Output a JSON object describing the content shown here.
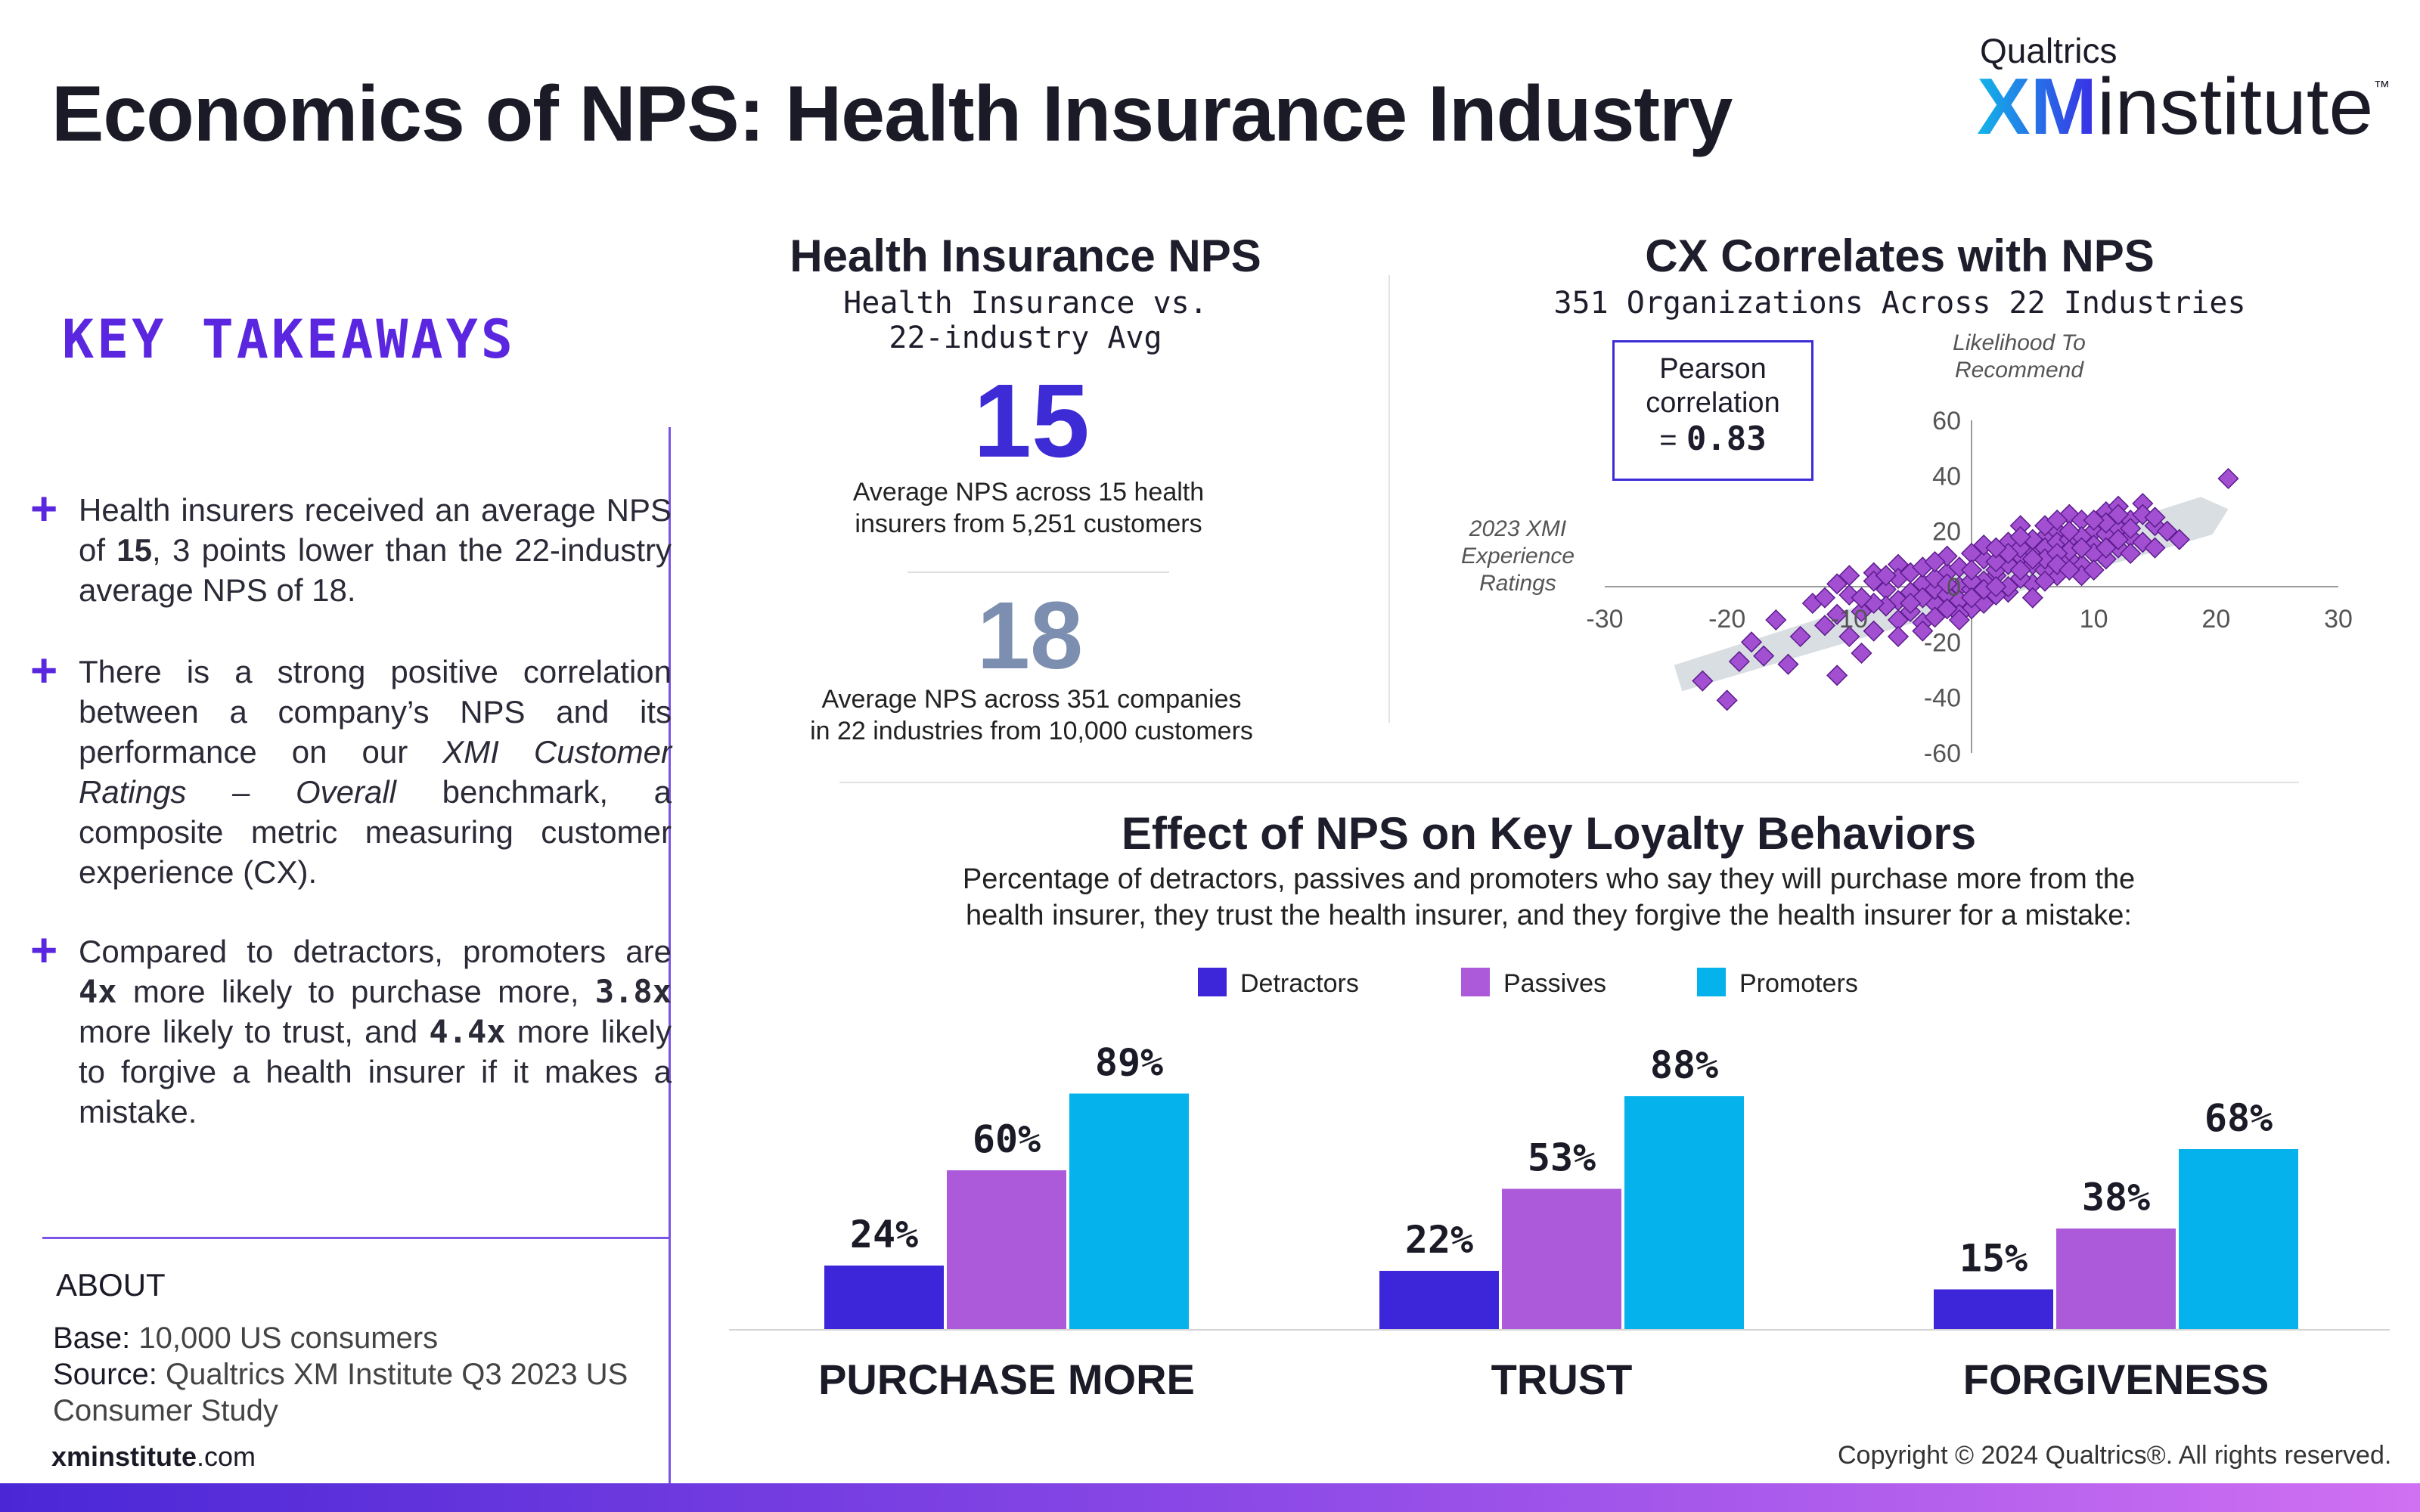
{
  "header": {
    "title": "Economics of NPS: Health Insurance Industry",
    "logo_top": "Qualtrics",
    "logo_xm": "XM",
    "logo_rest": "institute",
    "logo_tm": "™"
  },
  "takeaways": {
    "title": "KEY TAKEAWAYS",
    "plus": "+"
  },
  "about": {
    "title": "ABOUT",
    "base_key": "Base:",
    "base_value": " 10,000 US consumers",
    "source_key": "Source:",
    "source_value_1": " Qualtrics XM Institute Q3 2023 US",
    "source_value_2": "Consumer Study",
    "site_bold": "xminstitute",
    "site_rest": ".com"
  },
  "nps_panel": {
    "title": "Health Insurance NPS",
    "subtitle_1": "Health Insurance vs.",
    "subtitle_2": "22-industry Avg",
    "value": "15",
    "desc_1": "Average NPS across 15 health",
    "desc_2": "insurers from 5,251 customers",
    "avg_value": "18",
    "avg_desc_1": "Average NPS across 351 companies",
    "avg_desc_2": "in 22 industries from 10,000 customers"
  },
  "cx_panel": {
    "title": "CX Correlates with NPS",
    "subtitle": "351 Organizations Across 22 Industries",
    "pearson_1": "Pearson",
    "pearson_2": "correlation",
    "pearson_eq": "=",
    "pearson_value": "0.83"
  },
  "loyalty_panel": {
    "title": "Effect of NPS on Key Loyalty Behaviors",
    "subtitle_1": "Percentage of detractors, passives and promoters who say they will purchase more from the",
    "subtitle_2": "health insurer, they trust the health insurer, and they forgive the health insurer for a mistake:"
  },
  "footer": {
    "copyright": "Copyright © 2024 Qualtrics®. All rights reserved."
  },
  "colors": {
    "detractors": "#3d26d9",
    "passives": "#ac5ada",
    "promoters": "#06b2eb",
    "accent": "#5a26e0"
  },
  "chart_data": [
    {
      "type": "scatter",
      "title": "CX Correlates with NPS",
      "xlabel": "Likelihood To Recommend",
      "ylabel": "2023 XMI Experience Ratings",
      "x_ticks": [
        -30,
        -20,
        -10,
        0,
        10,
        20,
        30
      ],
      "y_ticks": [
        -60,
        -40,
        -20,
        0,
        20,
        40,
        60
      ],
      "x_tick_labels": [
        "-30",
        "-20",
        "-10",
        "",
        "10",
        "20",
        "30"
      ],
      "y_tick_labels": [
        "-60",
        "-40",
        "-20",
        "0",
        "20",
        "40",
        "60"
      ],
      "xlim": [
        -30,
        30
      ],
      "ylim": [
        -60,
        60
      ],
      "pearson_r": 0.83,
      "trend": [
        [
          -24,
          -33
        ],
        [
          21,
          28
        ]
      ],
      "points": [
        [
          21,
          39
        ],
        [
          -22,
          -34
        ],
        [
          -20,
          -41
        ],
        [
          -17,
          -25
        ],
        [
          -19,
          -27
        ],
        [
          -15,
          -28
        ],
        [
          -11,
          -32
        ],
        [
          -9,
          -24
        ],
        [
          -8,
          -16
        ],
        [
          -11,
          -10
        ],
        [
          -10,
          -3
        ],
        [
          -11,
          1
        ],
        [
          -8,
          5
        ],
        [
          -6,
          8
        ],
        [
          -5,
          -2
        ],
        [
          -4,
          -13
        ],
        [
          -3,
          -6
        ],
        [
          -2,
          5
        ],
        [
          -1,
          0
        ],
        [
          0,
          -8
        ],
        [
          1,
          10
        ],
        [
          2,
          4
        ],
        [
          3,
          16
        ],
        [
          4,
          22
        ],
        [
          5,
          8
        ],
        [
          6,
          18
        ],
        [
          7,
          20
        ],
        [
          8,
          26
        ],
        [
          9,
          24
        ],
        [
          10,
          20
        ],
        [
          11,
          27
        ],
        [
          12,
          29
        ],
        [
          13,
          24
        ],
        [
          14,
          30
        ],
        [
          15,
          22
        ],
        [
          16,
          20
        ],
        [
          -7,
          -1
        ],
        [
          -6,
          3
        ],
        [
          -5,
          5
        ],
        [
          -4,
          1
        ],
        [
          -3,
          -1
        ],
        [
          -2,
          -3
        ],
        [
          -1,
          -5
        ],
        [
          0,
          -1
        ],
        [
          1,
          2
        ],
        [
          2,
          6
        ],
        [
          3,
          8
        ],
        [
          4,
          11
        ],
        [
          5,
          13
        ],
        [
          6,
          14
        ],
        [
          7,
          16
        ],
        [
          8,
          17
        ],
        [
          9,
          18
        ],
        [
          10,
          15
        ],
        [
          11,
          19
        ],
        [
          12,
          21
        ],
        [
          13,
          18
        ],
        [
          -5,
          -9
        ],
        [
          -3,
          -11
        ],
        [
          -1,
          -10
        ],
        [
          1,
          -6
        ],
        [
          3,
          -2
        ],
        [
          5,
          1
        ],
        [
          7,
          4
        ],
        [
          9,
          8
        ],
        [
          11,
          10
        ],
        [
          -6,
          -5
        ],
        [
          -2,
          -8
        ],
        [
          2,
          -3
        ],
        [
          4,
          3
        ],
        [
          6,
          6
        ],
        [
          8,
          10
        ],
        [
          10,
          12
        ],
        [
          12,
          14
        ],
        [
          14,
          16
        ],
        [
          -7,
          -7
        ],
        [
          -4,
          -4
        ],
        [
          0,
          2
        ],
        [
          2,
          9
        ],
        [
          4,
          14
        ],
        [
          6,
          10
        ],
        [
          8,
          13
        ],
        [
          -8,
          2
        ],
        [
          -9,
          -9
        ],
        [
          -12,
          -14
        ],
        [
          -13,
          -6
        ],
        [
          -14,
          -18
        ],
        [
          -16,
          -12
        ],
        [
          -18,
          -20
        ],
        [
          -10,
          -18
        ],
        [
          0,
          12
        ],
        [
          1,
          15
        ],
        [
          3,
          12
        ],
        [
          5,
          17
        ],
        [
          7,
          12
        ],
        [
          9,
          14
        ],
        [
          11,
          23
        ],
        [
          13,
          12
        ],
        [
          14,
          26
        ],
        [
          -1,
          7
        ],
        [
          -3,
          3
        ],
        [
          -5,
          -6
        ],
        [
          3,
          0
        ],
        [
          5,
          -4
        ],
        [
          7,
          8
        ],
        [
          9,
          4
        ],
        [
          -2,
          11
        ],
        [
          0,
          6
        ],
        [
          2,
          14
        ],
        [
          4,
          18
        ],
        [
          6,
          22
        ],
        [
          8,
          20
        ],
        [
          10,
          24
        ],
        [
          12,
          26
        ],
        [
          15,
          14
        ],
        [
          17,
          17
        ],
        [
          -6,
          -12
        ],
        [
          -8,
          -6
        ],
        [
          -4,
          7
        ],
        [
          -2,
          1
        ],
        [
          1,
          -1
        ],
        [
          4,
          6
        ],
        [
          6,
          2
        ],
        [
          8,
          6
        ],
        [
          10,
          6
        ],
        [
          11,
          14
        ],
        [
          12,
          17
        ],
        [
          13,
          21
        ],
        [
          15,
          25
        ],
        [
          -10,
          4
        ],
        [
          -12,
          -4
        ],
        [
          -7,
          4
        ],
        [
          -3,
          9
        ],
        [
          0,
          -4
        ],
        [
          2,
          0
        ],
        [
          5,
          10
        ],
        [
          7,
          24
        ],
        [
          -1,
          -12
        ],
        [
          -4,
          -16
        ],
        [
          -6,
          -18
        ],
        [
          -9,
          -4
        ]
      ]
    },
    {
      "type": "bar",
      "title": "Effect of NPS on Key Loyalty Behaviors",
      "categories": [
        "PURCHASE MORE",
        "TRUST",
        "FORGIVENESS"
      ],
      "series": [
        {
          "name": "Detractors",
          "values": [
            24,
            22,
            15
          ]
        },
        {
          "name": "Passives",
          "values": [
            60,
            53,
            38
          ]
        },
        {
          "name": "Promoters",
          "values": [
            89,
            88,
            68
          ]
        }
      ],
      "value_labels": [
        [
          "24%",
          "60%",
          "89%"
        ],
        [
          "22%",
          "53%",
          "88%"
        ],
        [
          "15%",
          "38%",
          "68%"
        ]
      ],
      "ylim": [
        0,
        100
      ],
      "legend": "top-center"
    }
  ]
}
